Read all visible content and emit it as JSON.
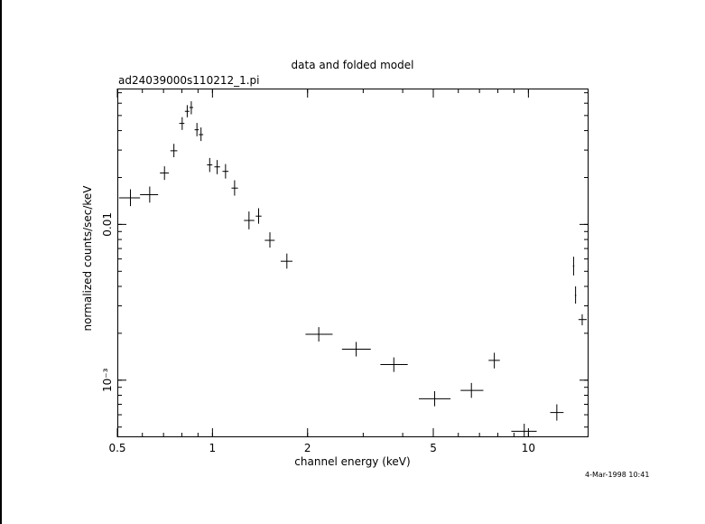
{
  "chart_data": {
    "type": "scatter",
    "title": "data and folded model",
    "subtitle": "ad24039000s110212_1.pi",
    "xlabel": "channel energy (keV)",
    "ylabel": "normalized counts/sec/keV",
    "x_scale": "log",
    "y_scale": "log",
    "xlim": [
      0.5,
      15.5
    ],
    "ylim": [
      0.00043,
      0.0745
    ],
    "x_ticks": [
      {
        "value": 0.5,
        "label": "0.5"
      },
      {
        "value": 1,
        "label": "1"
      },
      {
        "value": 2,
        "label": "2"
      },
      {
        "value": 5,
        "label": "5"
      },
      {
        "value": 10,
        "label": "10"
      }
    ],
    "y_ticks": [
      {
        "value": 0.01,
        "label": "0.01"
      },
      {
        "value": 0.001,
        "label": "10⁻³"
      }
    ],
    "grid": false,
    "footer": "4-Mar-1998 10:41",
    "series": [
      {
        "points": [
          {
            "x": 0.55,
            "xlo": 0.506,
            "xhi": 0.59,
            "y": 0.0148,
            "ylo": 0.0131,
            "yhi": 0.0168
          },
          {
            "x": 0.633,
            "xlo": 0.59,
            "xhi": 0.673,
            "y": 0.0155,
            "ylo": 0.0138,
            "yhi": 0.0175
          },
          {
            "x": 0.705,
            "xlo": 0.682,
            "xhi": 0.728,
            "y": 0.0214,
            "ylo": 0.0193,
            "yhi": 0.0236
          },
          {
            "x": 0.755,
            "xlo": 0.736,
            "xhi": 0.774,
            "y": 0.0297,
            "ylo": 0.027,
            "yhi": 0.0329
          },
          {
            "x": 0.802,
            "xlo": 0.785,
            "xhi": 0.815,
            "y": 0.0445,
            "ylo": 0.0404,
            "yhi": 0.0488
          },
          {
            "x": 0.832,
            "xlo": 0.818,
            "xhi": 0.845,
            "y": 0.0532,
            "ylo": 0.0487,
            "yhi": 0.0583
          },
          {
            "x": 0.857,
            "xlo": 0.845,
            "xhi": 0.869,
            "y": 0.0563,
            "ylo": 0.0509,
            "yhi": 0.0617
          },
          {
            "x": 0.893,
            "xlo": 0.878,
            "xhi": 0.905,
            "y": 0.0405,
            "ylo": 0.0368,
            "yhi": 0.0448
          },
          {
            "x": 0.92,
            "xlo": 0.905,
            "xhi": 0.935,
            "y": 0.0377,
            "ylo": 0.0343,
            "yhi": 0.0419
          },
          {
            "x": 0.98,
            "xlo": 0.961,
            "xhi": 0.999,
            "y": 0.0241,
            "ylo": 0.0217,
            "yhi": 0.0267
          },
          {
            "x": 1.035,
            "xlo": 1.014,
            "xhi": 1.057,
            "y": 0.0234,
            "ylo": 0.021,
            "yhi": 0.0259
          },
          {
            "x": 1.1,
            "xlo": 1.076,
            "xhi": 1.124,
            "y": 0.0219,
            "ylo": 0.0197,
            "yhi": 0.0244
          },
          {
            "x": 1.175,
            "xlo": 1.149,
            "xhi": 1.204,
            "y": 0.0171,
            "ylo": 0.0153,
            "yhi": 0.0192
          },
          {
            "x": 1.305,
            "xlo": 1.258,
            "xhi": 1.357,
            "y": 0.0106,
            "ylo": 0.0093,
            "yhi": 0.0121
          },
          {
            "x": 1.4,
            "xlo": 1.371,
            "xhi": 1.43,
            "y": 0.0113,
            "ylo": 0.0101,
            "yhi": 0.0127
          },
          {
            "x": 1.52,
            "xlo": 1.464,
            "xhi": 1.574,
            "y": 0.0079,
            "ylo": 0.0071,
            "yhi": 0.0089
          },
          {
            "x": 1.72,
            "xlo": 1.644,
            "xhi": 1.791,
            "y": 0.0058,
            "ylo": 0.0052,
            "yhi": 0.0065
          },
          {
            "x": 2.17,
            "xlo": 1.97,
            "xhi": 2.4,
            "y": 0.00197,
            "ylo": 0.00177,
            "yhi": 0.00219
          },
          {
            "x": 2.85,
            "xlo": 2.57,
            "xhi": 3.17,
            "y": 0.00158,
            "ylo": 0.00142,
            "yhi": 0.00176
          },
          {
            "x": 3.75,
            "xlo": 3.4,
            "xhi": 4.15,
            "y": 0.00126,
            "ylo": 0.00113,
            "yhi": 0.0014
          },
          {
            "x": 5.05,
            "xlo": 4.5,
            "xhi": 5.67,
            "y": 0.00076,
            "ylo": 0.00068,
            "yhi": 0.00085
          },
          {
            "x": 6.6,
            "xlo": 6.1,
            "xhi": 7.2,
            "y": 0.00086,
            "ylo": 0.00077,
            "yhi": 0.00096
          },
          {
            "x": 7.8,
            "xlo": 7.48,
            "xhi": 8.12,
            "y": 0.00134,
            "ylo": 0.00119,
            "yhi": 0.0015
          },
          {
            "x": 9.7,
            "xlo": 8.83,
            "xhi": 10.62,
            "y": 0.00047,
            "ylo": 0.00043,
            "yhi": 0.000525
          },
          {
            "x": 12.3,
            "xlo": 11.72,
            "xhi": 12.92,
            "y": 0.00062,
            "ylo": 0.00055,
            "yhi": 0.0007
          },
          {
            "x": 13.9,
            "xlo": 13.83,
            "xhi": 13.97,
            "y": 0.0054,
            "ylo": 0.0047,
            "yhi": 0.0062
          },
          {
            "x": 14.1,
            "xlo": 14.03,
            "xhi": 14.17,
            "y": 0.0035,
            "ylo": 0.0031,
            "yhi": 0.004
          },
          {
            "x": 14.8,
            "xlo": 14.4,
            "xhi": 15.3,
            "y": 0.00245,
            "ylo": 0.00225,
            "yhi": 0.00265
          }
        ]
      }
    ]
  }
}
